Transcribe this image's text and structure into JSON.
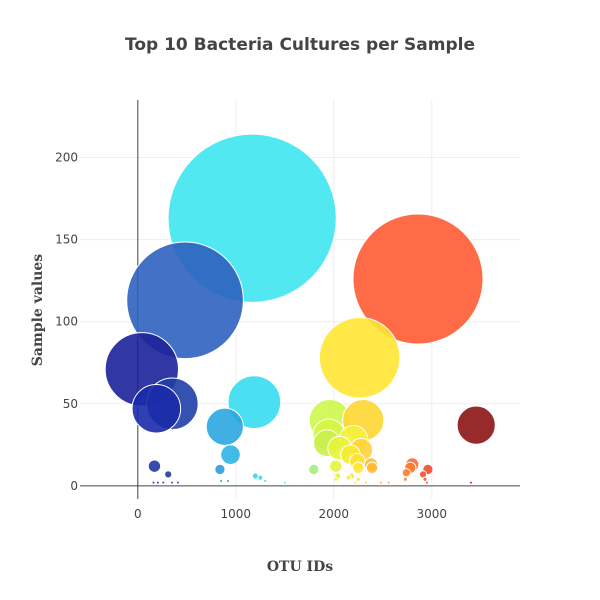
{
  "chart_data": {
    "type": "scatter",
    "title": "Top 10 Bacteria Cultures per Sample",
    "xlabel": "OTU IDs",
    "ylabel": "Sample values",
    "xlim": [
      -590,
      3900
    ],
    "ylim": [
      -8,
      235
    ],
    "xticks": [
      0,
      1000,
      2000,
      3000
    ],
    "yticks": [
      0,
      50,
      100,
      150,
      200
    ],
    "grid": true,
    "colorscale": "Jet",
    "points": [
      {
        "x": 1167,
        "y": 163,
        "color": "#3fe5f0"
      },
      {
        "x": 2859,
        "y": 126,
        "color": "#ff5a33"
      },
      {
        "x": 482,
        "y": 113,
        "color": "#2e62bf"
      },
      {
        "x": 2264,
        "y": 78,
        "color": "#ffe533"
      },
      {
        "x": 41,
        "y": 71,
        "color": "#1c2299"
      },
      {
        "x": 1189,
        "y": 51,
        "color": "#36ddf0"
      },
      {
        "x": 352,
        "y": 50,
        "color": "#1f3fa8"
      },
      {
        "x": 189,
        "y": 47,
        "color": "#1a2aa8"
      },
      {
        "x": 3453,
        "y": 37,
        "color": "#8c1414"
      },
      {
        "x": 1960,
        "y": 40,
        "color": "#ccf74a"
      },
      {
        "x": 2300,
        "y": 40,
        "color": "#ffd633"
      },
      {
        "x": 888,
        "y": 36,
        "color": "#2ba6e0"
      },
      {
        "x": 1950,
        "y": 31,
        "color": "#d4f542"
      },
      {
        "x": 2200,
        "y": 28,
        "color": "#f5f03a"
      },
      {
        "x": 1930,
        "y": 26,
        "color": "#c9f04d"
      },
      {
        "x": 2060,
        "y": 23,
        "color": "#e6f53a"
      },
      {
        "x": 2280,
        "y": 22,
        "color": "#ffd23a"
      },
      {
        "x": 2170,
        "y": 19,
        "color": "#f5ea33"
      },
      {
        "x": 946,
        "y": 19,
        "color": "#2fb3e6"
      },
      {
        "x": 2240,
        "y": 15,
        "color": "#ffe033"
      },
      {
        "x": 2380,
        "y": 13,
        "color": "#ffbe33"
      },
      {
        "x": 170,
        "y": 12,
        "color": "#2136a6"
      },
      {
        "x": 2800,
        "y": 13,
        "color": "#ff6a2e"
      },
      {
        "x": 2020,
        "y": 12,
        "color": "#e3f53d"
      },
      {
        "x": 2250,
        "y": 11,
        "color": "#ffe633"
      },
      {
        "x": 2780,
        "y": 11,
        "color": "#ff7a30"
      },
      {
        "x": 2390,
        "y": 11,
        "color": "#ffb833"
      },
      {
        "x": 2960,
        "y": 10,
        "color": "#f24a2e"
      },
      {
        "x": 1795,
        "y": 10,
        "color": "#a4f07a"
      },
      {
        "x": 838,
        "y": 10,
        "color": "#2a9fd9"
      },
      {
        "x": 2740,
        "y": 8,
        "color": "#ff7a2e"
      },
      {
        "x": 2910,
        "y": 7,
        "color": "#f05030"
      },
      {
        "x": 310,
        "y": 7,
        "color": "#1f3aa6"
      },
      {
        "x": 2180,
        "y": 6,
        "color": "#f5ea33"
      },
      {
        "x": 1200,
        "y": 6,
        "color": "#3ad6f0"
      },
      {
        "x": 2040,
        "y": 6,
        "color": "#e0f53d"
      },
      {
        "x": 1250,
        "y": 5,
        "color": "#3ed9f0"
      },
      {
        "x": 2150,
        "y": 5,
        "color": "#f0f03a"
      },
      {
        "x": 2730,
        "y": 4,
        "color": "#ff8430"
      },
      {
        "x": 2930,
        "y": 4,
        "color": "#f25630"
      },
      {
        "x": 2020,
        "y": 4,
        "color": "#e3f53d"
      },
      {
        "x": 2250,
        "y": 4,
        "color": "#ffe233"
      },
      {
        "x": 1300,
        "y": 3,
        "color": "#3fd9f0"
      },
      {
        "x": 160,
        "y": 2,
        "color": "#1f3aa6"
      },
      {
        "x": 205,
        "y": 2,
        "color": "#1f40aa"
      },
      {
        "x": 260,
        "y": 2,
        "color": "#2244ad"
      },
      {
        "x": 350,
        "y": 2,
        "color": "#2346b0"
      },
      {
        "x": 410,
        "y": 2,
        "color": "#2550b5"
      },
      {
        "x": 850,
        "y": 3,
        "color": "#2a9fd9"
      },
      {
        "x": 920,
        "y": 3,
        "color": "#2ca6dc"
      },
      {
        "x": 1500,
        "y": 2,
        "color": "#5ce6d9"
      },
      {
        "x": 2220,
        "y": 2,
        "color": "#f7e83a"
      },
      {
        "x": 2330,
        "y": 2,
        "color": "#ffcc33"
      },
      {
        "x": 2480,
        "y": 2,
        "color": "#ffa833"
      },
      {
        "x": 2560,
        "y": 2,
        "color": "#ff9a30"
      },
      {
        "x": 2950,
        "y": 2,
        "color": "#f24a2e"
      },
      {
        "x": 3400,
        "y": 2,
        "color": "#a01c1c"
      }
    ]
  }
}
